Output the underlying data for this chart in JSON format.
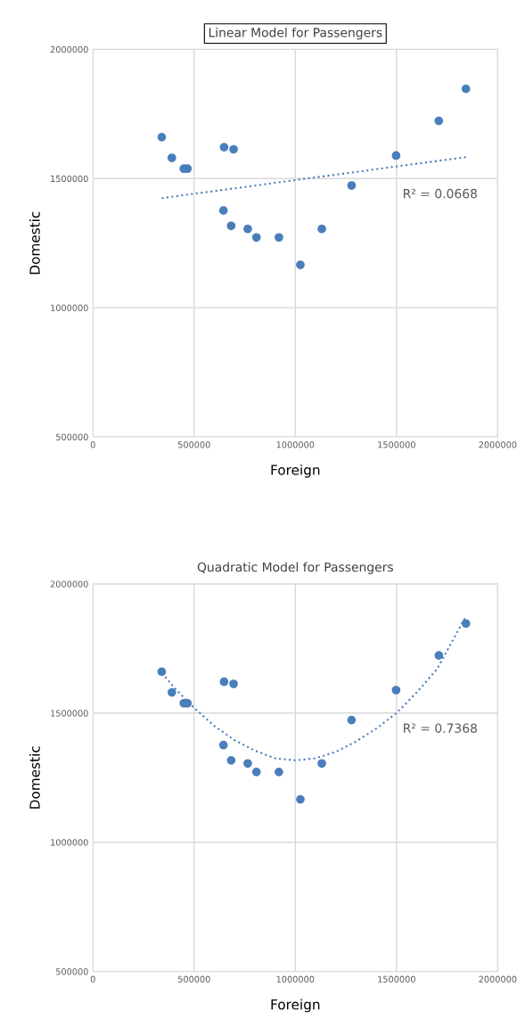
{
  "chart_data": [
    {
      "type": "scatter",
      "title": "Linear Model for Passengers",
      "xlabel": "Foreign",
      "ylabel": "Domestic",
      "x": [
        340000,
        390000,
        449000,
        467000,
        648000,
        695000,
        645000,
        683000,
        765000,
        808000,
        919000,
        1025000,
        1131000,
        1278000,
        1498000,
        1709000,
        1843000
      ],
      "series": [
        {
          "color": "#4a7ebb",
          "marker": "circle",
          "values": [
            1660000,
            1580000,
            1538000,
            1538000,
            1621000,
            1613000,
            1376000,
            1317000,
            1305000,
            1272000,
            1272000,
            1166000,
            1305000,
            1473000,
            1589000,
            1723000,
            1847000
          ]
        },
        {
          "type": "line",
          "color": "#4a7ebb",
          "line_style": "dotted",
          "marker": "none",
          "x": [
            340000,
            1843000
          ],
          "values": [
            1424000,
            1583000
          ]
        }
      ],
      "annotations": [
        "R² = 0.0668"
      ],
      "xlim": [
        0,
        2000000
      ],
      "xticks": [
        0,
        500000,
        1000000,
        1500000,
        2000000
      ],
      "ylim": [
        500000,
        2000000
      ],
      "yticks": [
        500000,
        1000000,
        1500000,
        2000000
      ],
      "grid": true
    },
    {
      "type": "scatter",
      "title": "Quadratic Model for Passengers",
      "xlabel": "Foreign",
      "ylabel": "Domestic",
      "x": [
        340000,
        390000,
        449000,
        467000,
        648000,
        695000,
        645000,
        683000,
        765000,
        808000,
        919000,
        1025000,
        1131000,
        1278000,
        1498000,
        1709000,
        1843000
      ],
      "series": [
        {
          "color": "#4a7ebb",
          "marker": "circle",
          "values": [
            1660000,
            1580000,
            1538000,
            1538000,
            1621000,
            1613000,
            1376000,
            1317000,
            1305000,
            1272000,
            1272000,
            1166000,
            1305000,
            1473000,
            1589000,
            1723000,
            1847000
          ]
        },
        {
          "type": "line",
          "color": "#4a7ebb",
          "line_style": "dotted",
          "marker": "none",
          "x": [
            342000,
            400000,
            500000,
            600000,
            700000,
            800000,
            900000,
            1000000,
            1100000,
            1200000,
            1300000,
            1400000,
            1500000,
            1600000,
            1700000,
            1843000
          ],
          "values": [
            1655000,
            1600000,
            1520000,
            1450000,
            1395000,
            1355000,
            1325000,
            1317000,
            1325000,
            1350000,
            1390000,
            1440000,
            1500000,
            1580000,
            1670000,
            1875000
          ]
        }
      ],
      "annotations": [
        "R² = 0.7368"
      ],
      "xlim": [
        0,
        2000000
      ],
      "xticks": [
        0,
        500000,
        1000000,
        1500000,
        2000000
      ],
      "ylim": [
        500000,
        2000000
      ],
      "yticks": [
        500000,
        1000000,
        1500000,
        2000000
      ],
      "grid": true
    }
  ]
}
